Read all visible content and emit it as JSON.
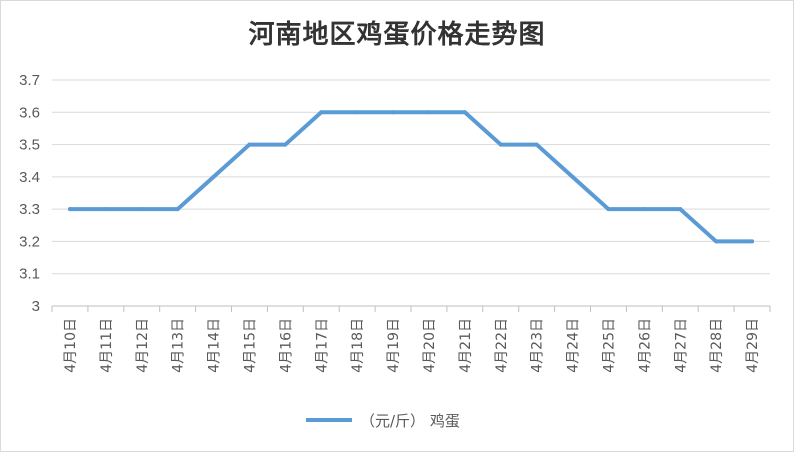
{
  "chart_data": {
    "type": "line",
    "title": "河南地区鸡蛋价格走势图",
    "categories": [
      "4月10日",
      "4月11日",
      "4月12日",
      "4月13日",
      "4月14日",
      "4月15日",
      "4月16日",
      "4月17日",
      "4月18日",
      "4月19日",
      "4月20日",
      "4月21日",
      "4月22日",
      "4月23日",
      "4月24日",
      "4月25日",
      "4月26日",
      "4月27日",
      "4月28日",
      "4月29日"
    ],
    "series": [
      {
        "name": "（元/斤） 鸡蛋",
        "color": "#5b9bd5",
        "values": [
          3.3,
          3.3,
          3.3,
          3.3,
          3.4,
          3.5,
          3.5,
          3.6,
          3.6,
          3.6,
          3.6,
          3.6,
          3.5,
          3.5,
          3.4,
          3.3,
          3.3,
          3.3,
          3.2,
          3.2
        ]
      }
    ],
    "yticks": [
      "3",
      "3.1",
      "3.2",
      "3.3",
      "3.4",
      "3.5",
      "3.6",
      "3.7"
    ],
    "ylim": [
      3,
      3.7
    ],
    "grid": true,
    "legend": "bottom"
  }
}
